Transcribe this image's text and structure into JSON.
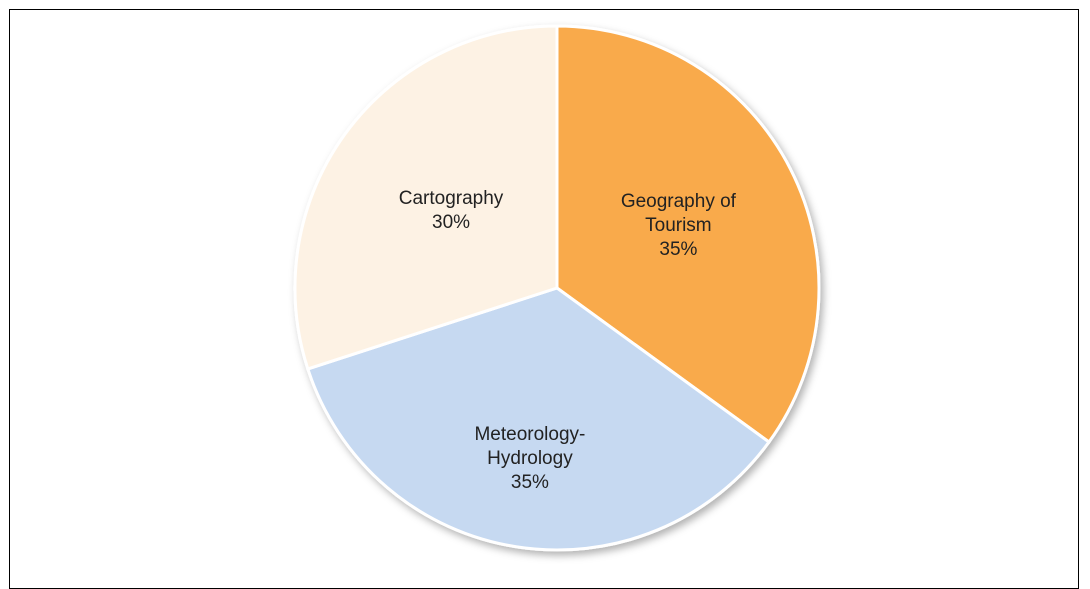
{
  "chart_data": {
    "type": "pie",
    "categories": [
      "Geography of Tourism",
      "Meteorology-Hydrology",
      "Cartography"
    ],
    "values": [
      35,
      35,
      30
    ],
    "value_labels": [
      "35%",
      "35%",
      "30%"
    ],
    "colors": [
      "#f9aa4c",
      "#c6d9f1",
      "#fdf2e4"
    ]
  }
}
